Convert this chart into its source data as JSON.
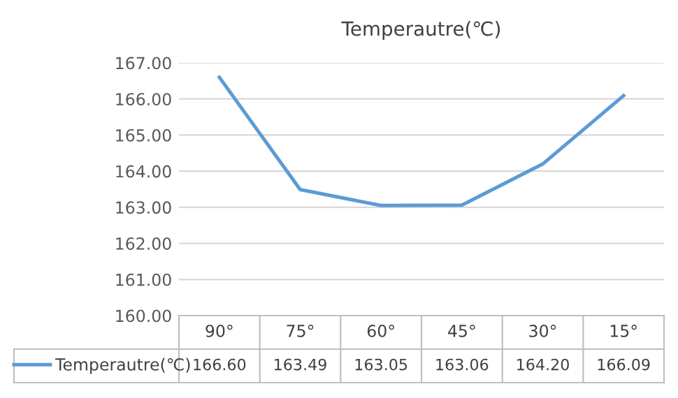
{
  "chart_data": {
    "type": "line",
    "title": "Temperautre(℃)",
    "categories": [
      "90°",
      "75°",
      "60°",
      "45°",
      "30°",
      "15°"
    ],
    "series": [
      {
        "name": "Temperautre(℃)",
        "color": "#5b9bd5",
        "values": [
          166.6,
          163.49,
          163.05,
          163.06,
          164.2,
          166.09
        ],
        "value_labels": [
          "166.60",
          "163.49",
          "163.05",
          "163.06",
          "164.20",
          "166.09"
        ]
      }
    ],
    "ylim": [
      160,
      167
    ],
    "yticks": [
      {
        "value": 160,
        "label": "160.00"
      },
      {
        "value": 161,
        "label": "161.00"
      },
      {
        "value": 162,
        "label": "162.00"
      },
      {
        "value": 163,
        "label": "163.00"
      },
      {
        "value": 164,
        "label": "164.00"
      },
      {
        "value": 165,
        "label": "165.00"
      },
      {
        "value": 166,
        "label": "166.00"
      },
      {
        "value": 167,
        "label": "167.00"
      }
    ],
    "grid": "y",
    "legend": "bottom left",
    "marker": "none",
    "line_style": "solid"
  }
}
